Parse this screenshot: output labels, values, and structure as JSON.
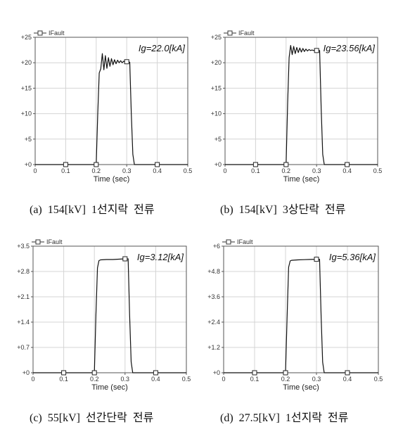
{
  "chart_data": [
    {
      "type": "line",
      "caption": "(a)  154[kV]  1선지락  전류",
      "legend": "IFault",
      "xlabel": "Time (sec)",
      "ylabel": "",
      "xlim": [
        0,
        0.5
      ],
      "ylim": [
        0,
        25
      ],
      "xticks": [
        0,
        0.1,
        0.2,
        0.3,
        0.4,
        0.5
      ],
      "xtick_labels": [
        "0",
        "0.1",
        "0.2",
        "0.3",
        "0.4",
        "0.5"
      ],
      "yticks": [
        0,
        5,
        10,
        15,
        20,
        25
      ],
      "ytick_labels": [
        "+0",
        "+5",
        "+10",
        "+15",
        "+20",
        "+25"
      ],
      "annotation": "Ig=22.0[kA]",
      "grid": true,
      "series": [
        {
          "x": [
            0,
            0.2,
            0.205,
            0.21,
            0.215,
            0.22,
            0.225,
            0.23,
            0.235,
            0.24,
            0.245,
            0.25,
            0.255,
            0.26,
            0.265,
            0.27,
            0.275,
            0.28,
            0.285,
            0.29,
            0.295,
            0.3,
            0.305,
            0.31,
            0.315,
            0.32,
            0.325,
            0.5
          ],
          "y": [
            0,
            0,
            10,
            18,
            18.8,
            21.8,
            18.6,
            21.4,
            18.9,
            21.0,
            19.3,
            20.8,
            19.6,
            20.6,
            19.8,
            20.5,
            20.0,
            20.4,
            20.0,
            20.3,
            20.1,
            20.2,
            20.2,
            20.1,
            10,
            2,
            0,
            0
          ]
        }
      ],
      "markers": [
        {
          "x": 0.1,
          "y": 0
        },
        {
          "x": 0.2,
          "y": 0
        },
        {
          "x": 0.3,
          "y": 20.2
        },
        {
          "x": 0.4,
          "y": 0
        }
      ]
    },
    {
      "type": "line",
      "caption": "(b)  154[kV]  3상단락  전류",
      "legend": "IFault",
      "xlabel": "Time (sec)",
      "ylabel": "",
      "xlim": [
        0,
        0.5
      ],
      "ylim": [
        0,
        25
      ],
      "xticks": [
        0,
        0.1,
        0.2,
        0.3,
        0.4,
        0.5
      ],
      "xtick_labels": [
        "0",
        "0.1",
        "0.2",
        "0.3",
        "0.4",
        "0.5"
      ],
      "yticks": [
        0,
        5,
        10,
        15,
        20,
        25
      ],
      "ytick_labels": [
        "+0",
        "+5",
        "+10",
        "+15",
        "+20",
        "+25"
      ],
      "annotation": "Ig=23.56[kA]",
      "grid": true,
      "series": [
        {
          "x": [
            0,
            0.2,
            0.205,
            0.21,
            0.215,
            0.22,
            0.225,
            0.23,
            0.235,
            0.24,
            0.245,
            0.25,
            0.255,
            0.26,
            0.265,
            0.27,
            0.275,
            0.28,
            0.285,
            0.29,
            0.295,
            0.3,
            0.305,
            0.31,
            0.315,
            0.32,
            0.325,
            0.5
          ],
          "y": [
            0,
            0,
            12,
            21,
            23.4,
            21.6,
            23.2,
            21.8,
            23.0,
            22.0,
            22.9,
            22.1,
            22.8,
            22.2,
            22.7,
            22.3,
            22.6,
            22.4,
            22.5,
            22.4,
            22.5,
            22.4,
            22.4,
            22.4,
            11,
            2,
            0,
            0
          ]
        }
      ],
      "markers": [
        {
          "x": 0.1,
          "y": 0
        },
        {
          "x": 0.2,
          "y": 0
        },
        {
          "x": 0.3,
          "y": 22.4
        },
        {
          "x": 0.4,
          "y": 0
        }
      ]
    },
    {
      "type": "line",
      "caption": "(c)  55[kV]  선간단락  전류",
      "legend": "IFault",
      "xlabel": "Time (sec)",
      "ylabel": "",
      "xlim": [
        0,
        0.5
      ],
      "ylim": [
        0,
        3.5
      ],
      "xticks": [
        0,
        0.1,
        0.2,
        0.3,
        0.4,
        0.5
      ],
      "xtick_labels": [
        "0",
        "0.1",
        "0.2",
        "0.3",
        "0.4",
        "0.5"
      ],
      "yticks": [
        0,
        0.7,
        1.4,
        2.1,
        2.8,
        3.5
      ],
      "ytick_labels": [
        "+0",
        "+0.7",
        "+1.4",
        "+2.1",
        "+2.8",
        "+3.5"
      ],
      "annotation": "Ig=3.12[kA]",
      "grid": true,
      "series": [
        {
          "x": [
            0,
            0.2,
            0.205,
            0.21,
            0.215,
            0.22,
            0.24,
            0.26,
            0.28,
            0.3,
            0.31,
            0.315,
            0.32,
            0.325,
            0.5
          ],
          "y": [
            0,
            0,
            1.6,
            2.9,
            3.1,
            3.12,
            3.13,
            3.13,
            3.14,
            3.15,
            3.15,
            1.6,
            0.3,
            0,
            0
          ]
        }
      ],
      "markers": [
        {
          "x": 0.1,
          "y": 0
        },
        {
          "x": 0.2,
          "y": 0
        },
        {
          "x": 0.3,
          "y": 3.15
        },
        {
          "x": 0.4,
          "y": 0
        }
      ]
    },
    {
      "type": "line",
      "caption": "(d)  27.5[kV]  1선지락  전류",
      "legend": "IFault",
      "xlabel": "Time (sec)",
      "ylabel": "",
      "xlim": [
        0,
        0.5
      ],
      "ylim": [
        0,
        6
      ],
      "xticks": [
        0,
        0.1,
        0.2,
        0.3,
        0.4,
        0.5
      ],
      "xtick_labels": [
        "0",
        "0.1",
        "0.2",
        "0.3",
        "0.4",
        "0.5"
      ],
      "yticks": [
        0,
        1.2,
        2.4,
        3.6,
        4.8,
        6
      ],
      "ytick_labels": [
        "+0",
        "+1.2",
        "+2.4",
        "+3.6",
        "+4.8",
        "+6"
      ],
      "annotation": "Ig=5.36[kA]",
      "grid": true,
      "series": [
        {
          "x": [
            0,
            0.2,
            0.205,
            0.21,
            0.215,
            0.22,
            0.24,
            0.26,
            0.28,
            0.3,
            0.31,
            0.315,
            0.32,
            0.325,
            0.5
          ],
          "y": [
            0,
            0,
            2.6,
            5.0,
            5.3,
            5.33,
            5.35,
            5.36,
            5.37,
            5.38,
            5.38,
            2.7,
            0.5,
            0,
            0
          ]
        }
      ],
      "markers": [
        {
          "x": 0.1,
          "y": 0
        },
        {
          "x": 0.2,
          "y": 0
        },
        {
          "x": 0.3,
          "y": 5.38
        },
        {
          "x": 0.4,
          "y": 0
        }
      ]
    }
  ]
}
